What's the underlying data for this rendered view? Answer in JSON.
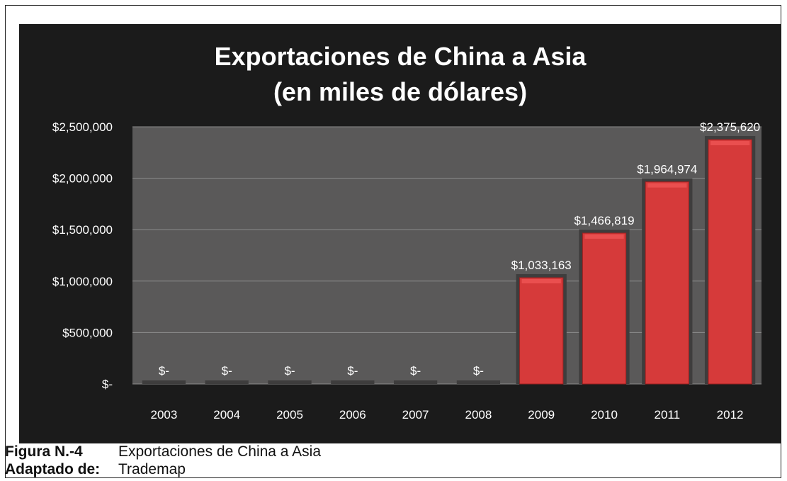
{
  "figure": {
    "caption_label": "Figura N.-4",
    "caption_text": "Exportaciones de China a Asia",
    "source_label": "Adaptado de:",
    "source_text": "Trademap"
  },
  "chart_data": {
    "type": "bar",
    "title": "Exportaciones de China a Asia",
    "subtitle": "(en miles de dólares)",
    "xlabel": "",
    "ylabel": "",
    "categories": [
      "2003",
      "2004",
      "2005",
      "2006",
      "2007",
      "2008",
      "2009",
      "2010",
      "2011",
      "2012"
    ],
    "values": [
      0,
      0,
      0,
      0,
      0,
      0,
      1033163,
      1466819,
      1964974,
      2375620
    ],
    "data_labels": [
      "$-",
      "$-",
      "$-",
      "$-",
      "$-",
      "$-",
      "$1,033,163",
      "$1,466,819",
      "$1,964,974",
      "$2,375,620"
    ],
    "ylim": [
      0,
      2500000
    ],
    "yticks": [
      0,
      500000,
      1000000,
      1500000,
      2000000,
      2500000
    ],
    "ytick_labels": [
      "$-",
      "$500,000",
      "$1,000,000",
      "$1,500,000",
      "$2,000,000",
      "$2,500,000"
    ],
    "grid": true,
    "legend": "none",
    "colors": {
      "bar": "#d63a3a",
      "bar_highlight": "#ef5555",
      "plot_bg": "#5a5959",
      "chart_bg": "#1b1b1b",
      "grid": "#8c8c8c",
      "text": "#ffffff"
    }
  }
}
